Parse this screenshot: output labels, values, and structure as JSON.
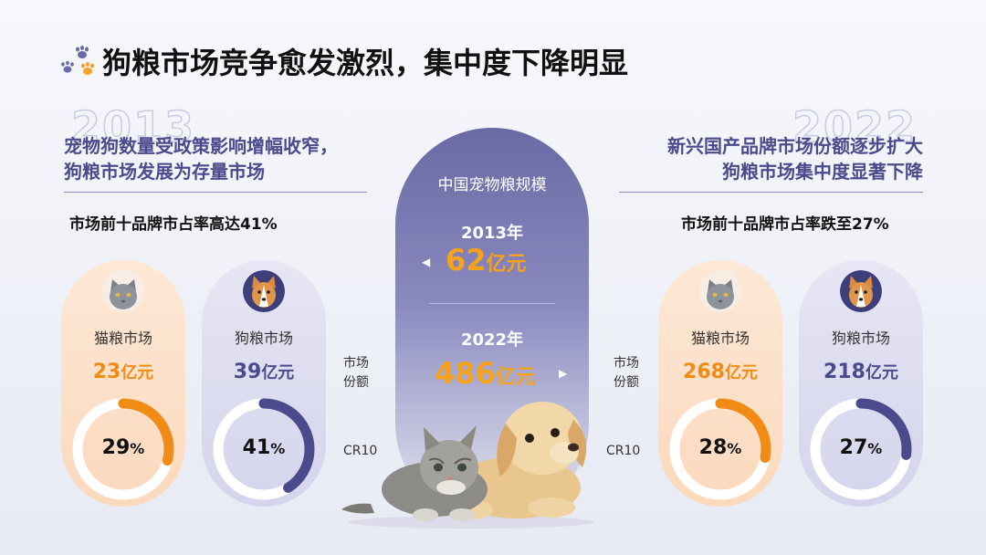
{
  "title": "狗粮市场竞争愈发激烈，集中度下降明显",
  "left": {
    "year": "2013",
    "headline": [
      "宠物狗数量受政策影响增幅收窄，",
      "狗粮市场发展为存量市场"
    ],
    "subtitle": "市场前十品牌市占率高达41%",
    "cat": {
      "label": "猫粮市场",
      "value": "23",
      "unit": "亿元",
      "cr": "29",
      "pct": "%",
      "share": 0.29
    },
    "dog": {
      "label": "狗粮市场",
      "value": "39",
      "unit": "亿元",
      "cr": "41",
      "pct": "%",
      "share": 0.41
    }
  },
  "right": {
    "year": "2022",
    "headline": [
      "新兴国产品牌市场份额逐步扩大",
      "狗粮市场集中度显著下降"
    ],
    "subtitle": "市场前十品牌市占率跌至27%",
    "cat": {
      "label": "猫粮市场",
      "value": "268",
      "unit": "亿元",
      "cr": "28",
      "pct": "%",
      "share": 0.28
    },
    "dog": {
      "label": "狗粮市场",
      "value": "218",
      "unit": "亿元",
      "cr": "27",
      "pct": "%",
      "share": 0.27
    }
  },
  "center": {
    "title": "中国宠物粮规模",
    "y1": "2013年",
    "v1": "62",
    "u1": "亿元",
    "y2": "2022年",
    "v2": "486",
    "u2": "亿元",
    "arrow_left": "◀",
    "arrow_right": "▶"
  },
  "side_labels": {
    "share": [
      "市场",
      "份额"
    ],
    "cr": "CR10"
  },
  "colors": {
    "orange": "#f08c16",
    "purple": "#4a4a8c",
    "ring_track": "#ffffff"
  },
  "icons": [
    "paw-icon",
    "cat-avatar-icon",
    "dog-avatar-icon",
    "kitten-puppy-illustration"
  ]
}
